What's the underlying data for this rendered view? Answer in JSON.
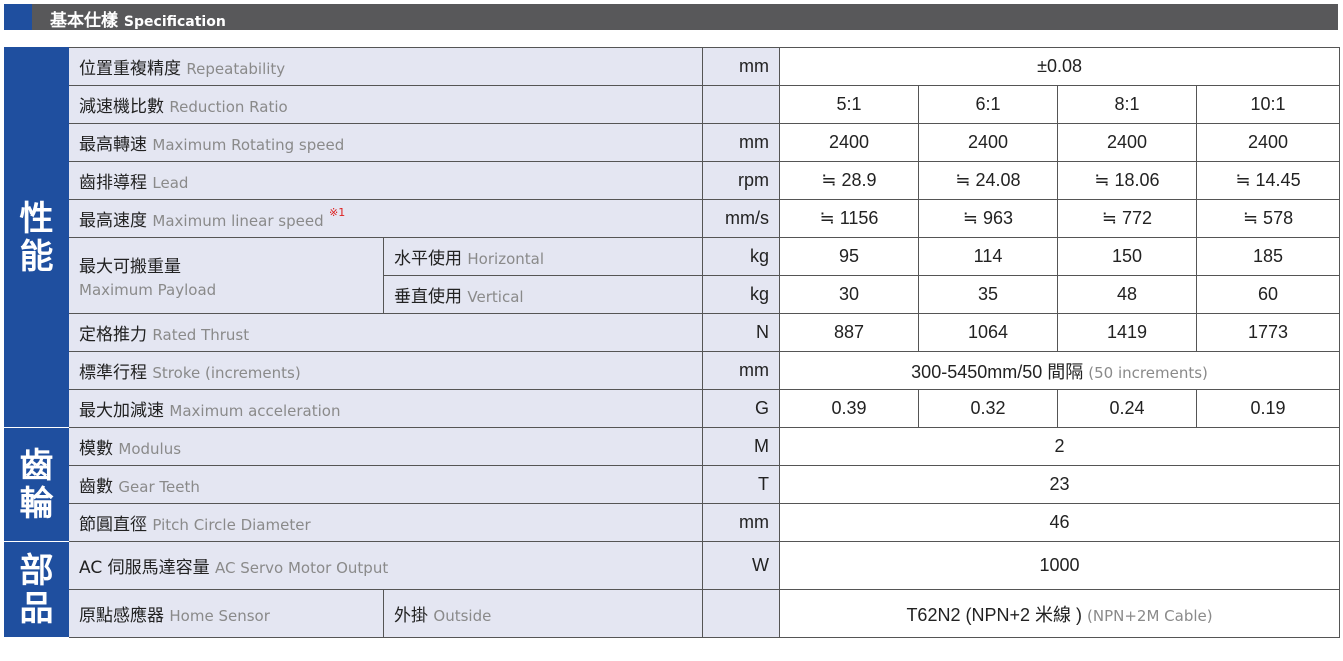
{
  "header": {
    "title_zh": "基本仕樣",
    "title_en": "Specification",
    "accent": "#1f4f9f"
  },
  "sections": [
    {
      "label": "性能",
      "rows": [
        {
          "zh": "位置重複精度",
          "en": "Repeatability",
          "unit": "mm",
          "span_value": "±0.08"
        },
        {
          "zh": "減速機比數",
          "en": "Reduction Ratio",
          "unit": "",
          "values": [
            "5:1",
            "6:1",
            "8:1",
            "10:1"
          ]
        },
        {
          "zh": "最高轉速",
          "en": "Maximum Rotating speed",
          "unit": "mm",
          "values": [
            "2400",
            "2400",
            "2400",
            "2400"
          ]
        },
        {
          "zh": "齒排導程",
          "en": "Lead",
          "unit": "rpm",
          "values": [
            "≒ 28.9",
            "≒ 24.08",
            "≒ 18.06",
            "≒ 14.45"
          ]
        },
        {
          "zh": "最高速度",
          "en": "Maximum linear speed",
          "note": "※1",
          "unit": "mm/s",
          "values": [
            "≒ 1156",
            "≒ 963",
            "≒ 772",
            "≒ 578"
          ]
        },
        {
          "zh": "最大可搬重量",
          "en": "Maximum Payload",
          "sub_zh": "水平使用",
          "sub_en": "Horizontal",
          "unit": "kg",
          "values": [
            "95",
            "114",
            "150",
            "185"
          ]
        },
        {
          "sub_zh": "垂直使用",
          "sub_en": "Vertical",
          "unit": "kg",
          "values": [
            "30",
            "35",
            "48",
            "60"
          ]
        },
        {
          "zh": "定格推力",
          "en": "Rated Thrust",
          "unit": "N",
          "values": [
            "887",
            "1064",
            "1419",
            "1773"
          ]
        },
        {
          "zh": "標準行程",
          "en": "Stroke (increments)",
          "unit": "mm",
          "span_value": "300-5450mm/50 間隔",
          "span_value_en": "(50 increments)"
        },
        {
          "zh": "最大加減速",
          "en": "Maximum acceleration",
          "unit": "G",
          "values": [
            "0.39",
            "0.32",
            "0.24",
            "0.19"
          ]
        }
      ]
    },
    {
      "label": "齒輪",
      "rows": [
        {
          "zh": "模數",
          "en": "Modulus",
          "unit": "M",
          "span_value": "2"
        },
        {
          "zh": "齒數",
          "en": "Gear Teeth",
          "unit": "T",
          "span_value": "23"
        },
        {
          "zh": "節圓直徑",
          "en": "Pitch Circle Diameter",
          "unit": "mm",
          "span_value": "46"
        }
      ]
    },
    {
      "label": "部品",
      "rows": [
        {
          "zh": "AC 伺服馬達容量",
          "en": "AC Servo Motor Output",
          "unit": "W",
          "span_value": "1000",
          "tall": true
        },
        {
          "zh": "原點感應器",
          "en": "Home Sensor",
          "sub_zh": "外掛",
          "sub_en": "Outside",
          "unit": "",
          "span_value": "T62N2 (NPN+2 米線 )",
          "span_value_en": "(NPN+2M Cable)",
          "tall": true
        }
      ]
    }
  ]
}
